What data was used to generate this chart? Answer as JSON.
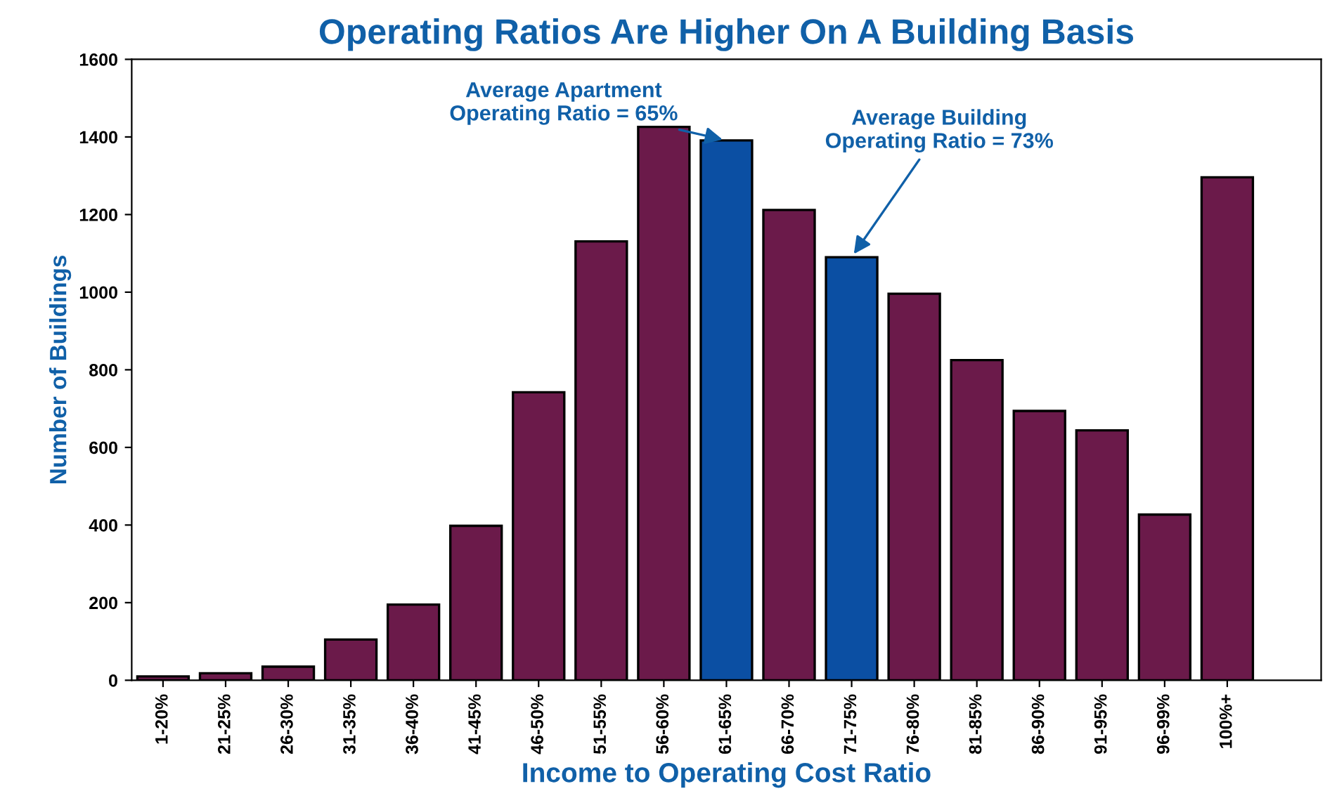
{
  "chart_data": {
    "type": "bar",
    "title": "Operating Ratios Are Higher On A Building Basis",
    "xlabel": "Income to Operating Cost Ratio",
    "ylabel": "Number of Buildings",
    "categories": [
      "1-20%",
      "21-25%",
      "26-30%",
      "31-35%",
      "36-40%",
      "41-45%",
      "46-50%",
      "51-55%",
      "56-60%",
      "61-65%",
      "66-70%",
      "71-75%",
      "76-80%",
      "81-85%",
      "86-90%",
      "91-95%",
      "96-99%",
      "100%+"
    ],
    "values": [
      10,
      18,
      35,
      105,
      195,
      398,
      742,
      1131,
      1426,
      1391,
      1212,
      1090,
      996,
      825,
      694,
      644,
      427,
      1296
    ],
    "colors": [
      "#6b1a4a",
      "#6b1a4a",
      "#6b1a4a",
      "#6b1a4a",
      "#6b1a4a",
      "#6b1a4a",
      "#6b1a4a",
      "#6b1a4a",
      "#6b1a4a",
      "#0b4fa3",
      "#6b1a4a",
      "#0b4fa3",
      "#6b1a4a",
      "#6b1a4a",
      "#6b1a4a",
      "#6b1a4a",
      "#6b1a4a",
      "#6b1a4a"
    ],
    "ylim": [
      0,
      1600
    ],
    "yticks": [
      0,
      200,
      400,
      600,
      800,
      1000,
      1200,
      1400,
      1600
    ],
    "grid": false,
    "annotations": [
      {
        "text": "Average Apartment\nOperating Ratio = 65%",
        "x": "61-65%",
        "y": 1391
      },
      {
        "text": "Average Building\nOperating Ratio = 73%",
        "x": "71-75%",
        "y": 1090
      }
    ]
  }
}
